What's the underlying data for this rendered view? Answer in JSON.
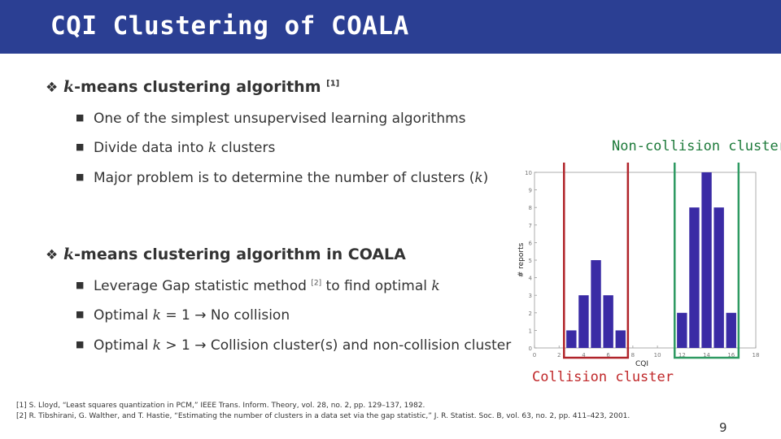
{
  "slide": {
    "title": "CQI Clustering of COALA",
    "page_number": "9"
  },
  "section1": {
    "bullet_prefix": "k",
    "bullet_rest": "-means clustering algorithm",
    "citation": "[1]",
    "items": [
      {
        "text": "One of the simplest unsupervised learning algorithms"
      },
      {
        "pre": "Divide data into ",
        "var": "k",
        "post": " clusters"
      },
      {
        "pre": "Major problem is to determine the number of clusters (",
        "var": "k",
        "post": ")"
      }
    ]
  },
  "section2": {
    "bullet_prefix": "k",
    "bullet_rest": "-means clustering algorithm in COALA",
    "items": [
      {
        "pre": "Leverage Gap statistic method ",
        "cite": "[2]",
        "mid": " to find optimal ",
        "var": "k"
      },
      {
        "pre": "Optimal ",
        "var": "k",
        "post": " = 1 → No collision"
      },
      {
        "pre": "Optimal ",
        "var": "k",
        "post": " > 1 → Collision cluster(s) and non-collision cluster"
      }
    ]
  },
  "annotations": {
    "non_collision": "Non-collision cluster",
    "collision": "Collision cluster"
  },
  "references": [
    "[1] S. Lloyd, “Least squares quantization in PCM,” IEEE Trans. Inform. Theory, vol. 28, no. 2, pp. 129–137, 1982.",
    "[2] R. Tibshirani, G. Walther, and T. Hastie, “Estimating the number of clusters in a data set via the gap statistic,” J. R. Statist. Soc. B, vol. 63, no. 2, pp. 411–423, 2001."
  ],
  "chart_data": {
    "type": "bar",
    "xlabel": "CQI",
    "ylabel": "# reports",
    "xlim": [
      0,
      18
    ],
    "ylim": [
      0,
      10
    ],
    "xticks": [
      0,
      2,
      4,
      6,
      8,
      10,
      12,
      14,
      16,
      18
    ],
    "yticks": [
      0,
      1,
      2,
      3,
      4,
      5,
      6,
      7,
      8,
      9,
      10
    ],
    "x": [
      3,
      4,
      5,
      6,
      7,
      12,
      13,
      14,
      15,
      16
    ],
    "values": [
      1,
      3,
      5,
      3,
      1,
      2,
      8,
      10,
      8,
      2
    ],
    "bar_color": "#3a2ba5",
    "collision_box_color": "#b0242a",
    "noncollision_box_color": "#2e9a62"
  }
}
